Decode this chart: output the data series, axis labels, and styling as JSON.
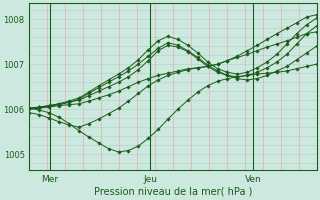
{
  "bg_color": "#cce8df",
  "plot_bg_color": "#cce8df",
  "line_color": "#1a5c1a",
  "grid_color_h": "#aad4c8",
  "grid_color_v": "#f0a0a0",
  "xlabel": "Pression niveau de la mer( hPa )",
  "yticks": [
    1005,
    1006,
    1007,
    1008
  ],
  "ylim": [
    1004.65,
    1008.35
  ],
  "xlim": [
    0,
    1
  ],
  "xtick_labels": [
    "Mer",
    "Jeu",
    "Ven"
  ],
  "xtick_positions": [
    0.07,
    0.42,
    0.78
  ],
  "series": [
    [
      1005.92,
      1005.88,
      1005.8,
      1005.72,
      1005.65,
      1005.6,
      1005.68,
      1005.78,
      1005.9,
      1006.02,
      1006.18,
      1006.35,
      1006.52,
      1006.65,
      1006.75,
      1006.82,
      1006.88,
      1006.92,
      1006.95,
      1007.0,
      1007.08,
      1007.18,
      1007.3,
      1007.42,
      1007.55,
      1007.68,
      1007.8,
      1007.92,
      1008.05,
      1008.1
    ],
    [
      1006.0,
      1006.02,
      1006.05,
      1006.08,
      1006.1,
      1006.12,
      1006.18,
      1006.25,
      1006.32,
      1006.4,
      1006.5,
      1006.6,
      1006.68,
      1006.75,
      1006.8,
      1006.85,
      1006.9,
      1006.92,
      1006.95,
      1007.0,
      1007.08,
      1007.15,
      1007.22,
      1007.3,
      1007.38,
      1007.45,
      1007.52,
      1007.6,
      1007.68,
      1007.72
    ],
    [
      1006.02,
      1005.98,
      1005.92,
      1005.82,
      1005.68,
      1005.52,
      1005.38,
      1005.25,
      1005.12,
      1005.05,
      1005.08,
      1005.18,
      1005.35,
      1005.55,
      1005.78,
      1006.0,
      1006.2,
      1006.38,
      1006.52,
      1006.62,
      1006.68,
      1006.72,
      1006.75,
      1006.78,
      1006.8,
      1006.82,
      1006.85,
      1006.9,
      1006.95,
      1007.0
    ],
    [
      1006.02,
      1006.04,
      1006.08,
      1006.12,
      1006.16,
      1006.2,
      1006.3,
      1006.4,
      1006.5,
      1006.6,
      1006.72,
      1006.88,
      1007.08,
      1007.3,
      1007.42,
      1007.38,
      1007.28,
      1007.12,
      1006.95,
      1006.82,
      1006.75,
      1006.72,
      1006.75,
      1006.82,
      1006.92,
      1007.05,
      1007.22,
      1007.45,
      1007.68,
      1007.85
    ],
    [
      1006.02,
      1006.05,
      1006.08,
      1006.12,
      1006.18,
      1006.25,
      1006.38,
      1006.52,
      1006.65,
      1006.78,
      1006.92,
      1007.1,
      1007.32,
      1007.52,
      1007.62,
      1007.55,
      1007.42,
      1007.25,
      1007.05,
      1006.9,
      1006.82,
      1006.78,
      1006.82,
      1006.92,
      1007.05,
      1007.22,
      1007.45,
      1007.68,
      1007.88,
      1008.02
    ],
    [
      1006.02,
      1006.04,
      1006.06,
      1006.1,
      1006.15,
      1006.22,
      1006.35,
      1006.48,
      1006.6,
      1006.72,
      1006.85,
      1007.0,
      1007.18,
      1007.35,
      1007.48,
      1007.42,
      1007.3,
      1007.15,
      1006.98,
      1006.85,
      1006.75,
      1006.68,
      1006.65,
      1006.68,
      1006.75,
      1006.85,
      1006.95,
      1007.1,
      1007.25,
      1007.4
    ]
  ]
}
